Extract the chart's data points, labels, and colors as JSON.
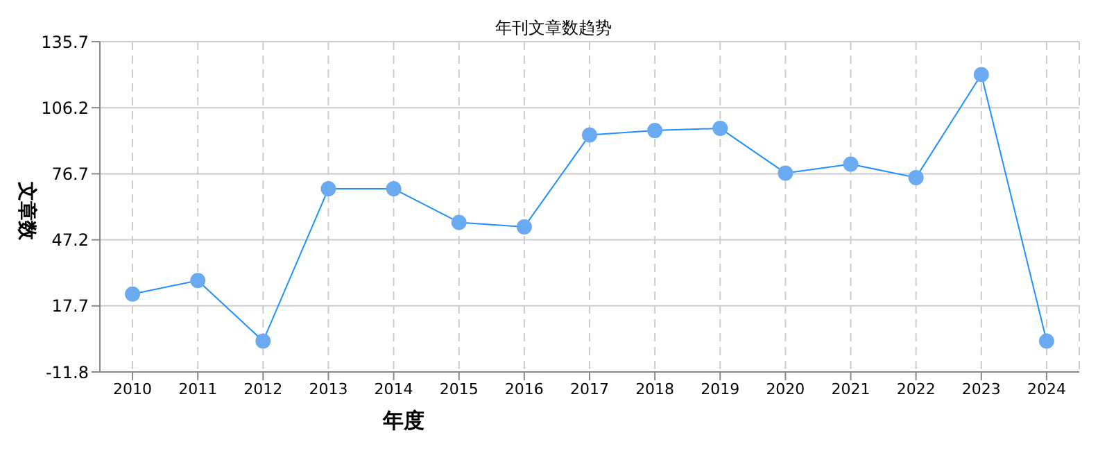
{
  "chart_data": {
    "type": "line",
    "title": "年刊文章数趋势",
    "xlabel": "年度",
    "ylabel": "文章数",
    "categories": [
      "2010",
      "2011",
      "2012",
      "2013",
      "2014",
      "2015",
      "2016",
      "2017",
      "2018",
      "2019",
      "2020",
      "2021",
      "2022",
      "2023",
      "2024"
    ],
    "series": [
      {
        "color": "#1e90ff",
        "values": [
          23,
          29,
          2,
          70,
          70,
          55,
          53,
          94,
          96,
          97,
          77,
          81,
          75,
          121,
          2
        ]
      }
    ],
    "ylim": [
      -11.8,
      135.7
    ],
    "yticks": [
      -11.8,
      17.7,
      47.2,
      76.7,
      106.2,
      135.7
    ],
    "grid": true,
    "marker": "circle",
    "line_style": "solid"
  }
}
